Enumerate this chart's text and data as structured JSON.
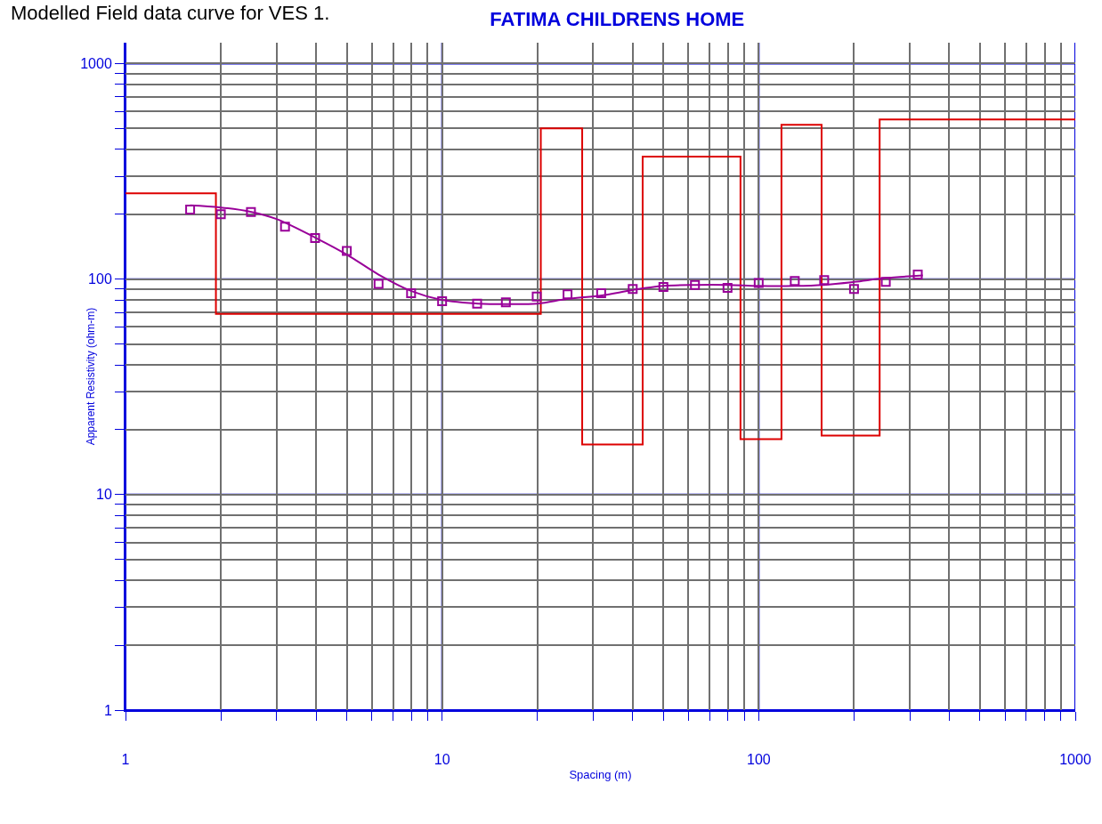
{
  "chart_data": {
    "type": "line",
    "title": "Modelled Field data curve for VES 1.",
    "subtitle": "FATIMA CHILDRENS HOME",
    "xlabel": "Spacing (m)",
    "ylabel": "Apparent Resistivity (ohm-m)",
    "log": "xy",
    "grid": true,
    "xlim": [
      1,
      1000
    ],
    "ylim": [
      1,
      1250
    ],
    "xticks": [
      1,
      {
        "value": 2,
        "label": null
      },
      {
        "value": 3,
        "label": null
      },
      {
        "value": 4,
        "label": null
      },
      {
        "value": 5,
        "label": null
      },
      {
        "value": 6,
        "label": null
      },
      {
        "value": 7,
        "label": null
      },
      {
        "value": 8,
        "label": null
      },
      {
        "value": 9,
        "label": null
      },
      10,
      {
        "value": 20,
        "label": null
      },
      {
        "value": 30,
        "label": null
      },
      {
        "value": 40,
        "label": null
      },
      {
        "value": 50,
        "label": null
      },
      {
        "value": 60,
        "label": null
      },
      {
        "value": 70,
        "label": null
      },
      {
        "value": 80,
        "label": null
      },
      {
        "value": 90,
        "label": null
      },
      100,
      {
        "value": 200,
        "label": null
      },
      {
        "value": 300,
        "label": null
      },
      {
        "value": 400,
        "label": null
      },
      {
        "value": 500,
        "label": null
      },
      {
        "value": 600,
        "label": null
      },
      {
        "value": 700,
        "label": null
      },
      {
        "value": 800,
        "label": null
      },
      {
        "value": 900,
        "label": null
      },
      1000
    ],
    "yticks": [
      1,
      {
        "value": 2,
        "label": null
      },
      {
        "value": 3,
        "label": null
      },
      {
        "value": 4,
        "label": null
      },
      {
        "value": 5,
        "label": null
      },
      {
        "value": 6,
        "label": null
      },
      {
        "value": 7,
        "label": null
      },
      {
        "value": 8,
        "label": null
      },
      {
        "value": 9,
        "label": null
      },
      10,
      {
        "value": 20,
        "label": null
      },
      {
        "value": 30,
        "label": null
      },
      {
        "value": 40,
        "label": null
      },
      {
        "value": 50,
        "label": null
      },
      {
        "value": 60,
        "label": null
      },
      {
        "value": 70,
        "label": null
      },
      {
        "value": 80,
        "label": null
      },
      {
        "value": 90,
        "label": null
      },
      100,
      {
        "value": 200,
        "label": null
      },
      {
        "value": 300,
        "label": null
      },
      {
        "value": 400,
        "label": null
      },
      {
        "value": 500,
        "label": null
      },
      {
        "value": 600,
        "label": null
      },
      {
        "value": 700,
        "label": null
      },
      {
        "value": 800,
        "label": null
      },
      {
        "value": 900,
        "label": null
      },
      1000
    ],
    "series": [
      {
        "type": "step",
        "color": "#dd0000",
        "marker": "none",
        "x": [
          1,
          1.93,
          20.5,
          27.7,
          43,
          87.6,
          118,
          158,
          241,
          1000
        ],
        "values": [
          250,
          69,
          500,
          17.1,
          370,
          18.1,
          520,
          18.8,
          550,
          550
        ]
      },
      {
        "type": "line",
        "color": "#990099",
        "marker": "none",
        "x": [
          1.6,
          2,
          2.5,
          3,
          4,
          5,
          6.3,
          8,
          10,
          13,
          16,
          20,
          25,
          32,
          40,
          50,
          63,
          80,
          100,
          130,
          160,
          200,
          250,
          330
        ],
        "values": [
          220,
          215,
          205,
          190,
          155,
          130,
          105,
          88,
          80,
          77,
          76.5,
          77,
          81,
          84,
          89,
          93,
          94,
          94,
          93,
          93,
          94,
          97,
          101,
          104
        ]
      },
      {
        "type": "scatter",
        "color": "#990099",
        "marker": "square",
        "x": [
          1.6,
          2,
          2.49,
          3.19,
          3.97,
          5,
          6.3,
          7.98,
          10,
          12.9,
          15.9,
          19.9,
          24.9,
          31.8,
          40,
          50,
          62.9,
          79.7,
          100,
          130,
          161,
          200,
          252,
          318
        ],
        "values": [
          210,
          200,
          205,
          175,
          155,
          135,
          95,
          86,
          79,
          77,
          78,
          83,
          85,
          86,
          90,
          92,
          94,
          91,
          96,
          98,
          99,
          90,
          97,
          105
        ]
      }
    ]
  }
}
